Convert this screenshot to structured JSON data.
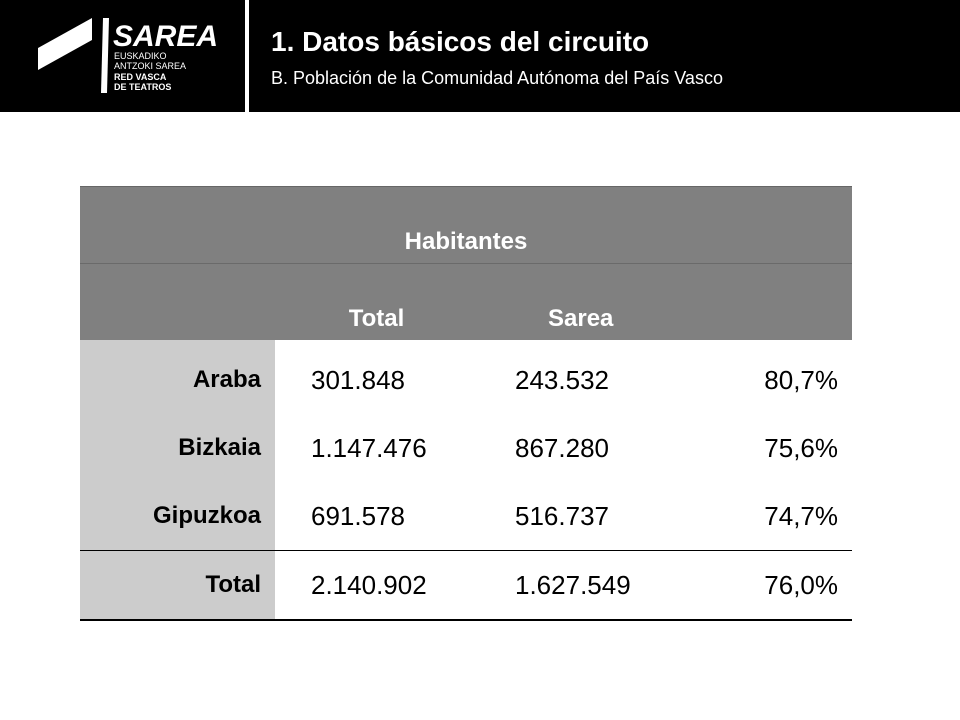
{
  "header": {
    "logo": {
      "name": "SAREA",
      "line1": "EUSKADIKO",
      "line2": "ANTZOKI SAREA",
      "line3": "RED VASCA",
      "line4": "DE TEATROS"
    },
    "title": "1. Datos básicos del circuito",
    "subtitle": "B. Población de la Comunidad Autónoma del País Vasco"
  },
  "table": {
    "group_header": "Habitantes",
    "columns": [
      "",
      "Total",
      "Sarea",
      ""
    ],
    "rows": [
      {
        "label": "Araba",
        "total": "301.848",
        "sarea": "243.532",
        "pct": "80,7%"
      },
      {
        "label": "Bizkaia",
        "total": "1.147.476",
        "sarea": "867.280",
        "pct": "75,6%"
      },
      {
        "label": "Gipuzkoa",
        "total": "691.578",
        "sarea": "516.737",
        "pct": "74,7%"
      }
    ],
    "total_row": {
      "label": "Total",
      "total": "2.140.902",
      "sarea": "1.627.549",
      "pct": "76,0%"
    }
  },
  "colors": {
    "header_bg": "#000000",
    "table_header_bg": "#808080",
    "label_column_bg": "#cccccc"
  }
}
